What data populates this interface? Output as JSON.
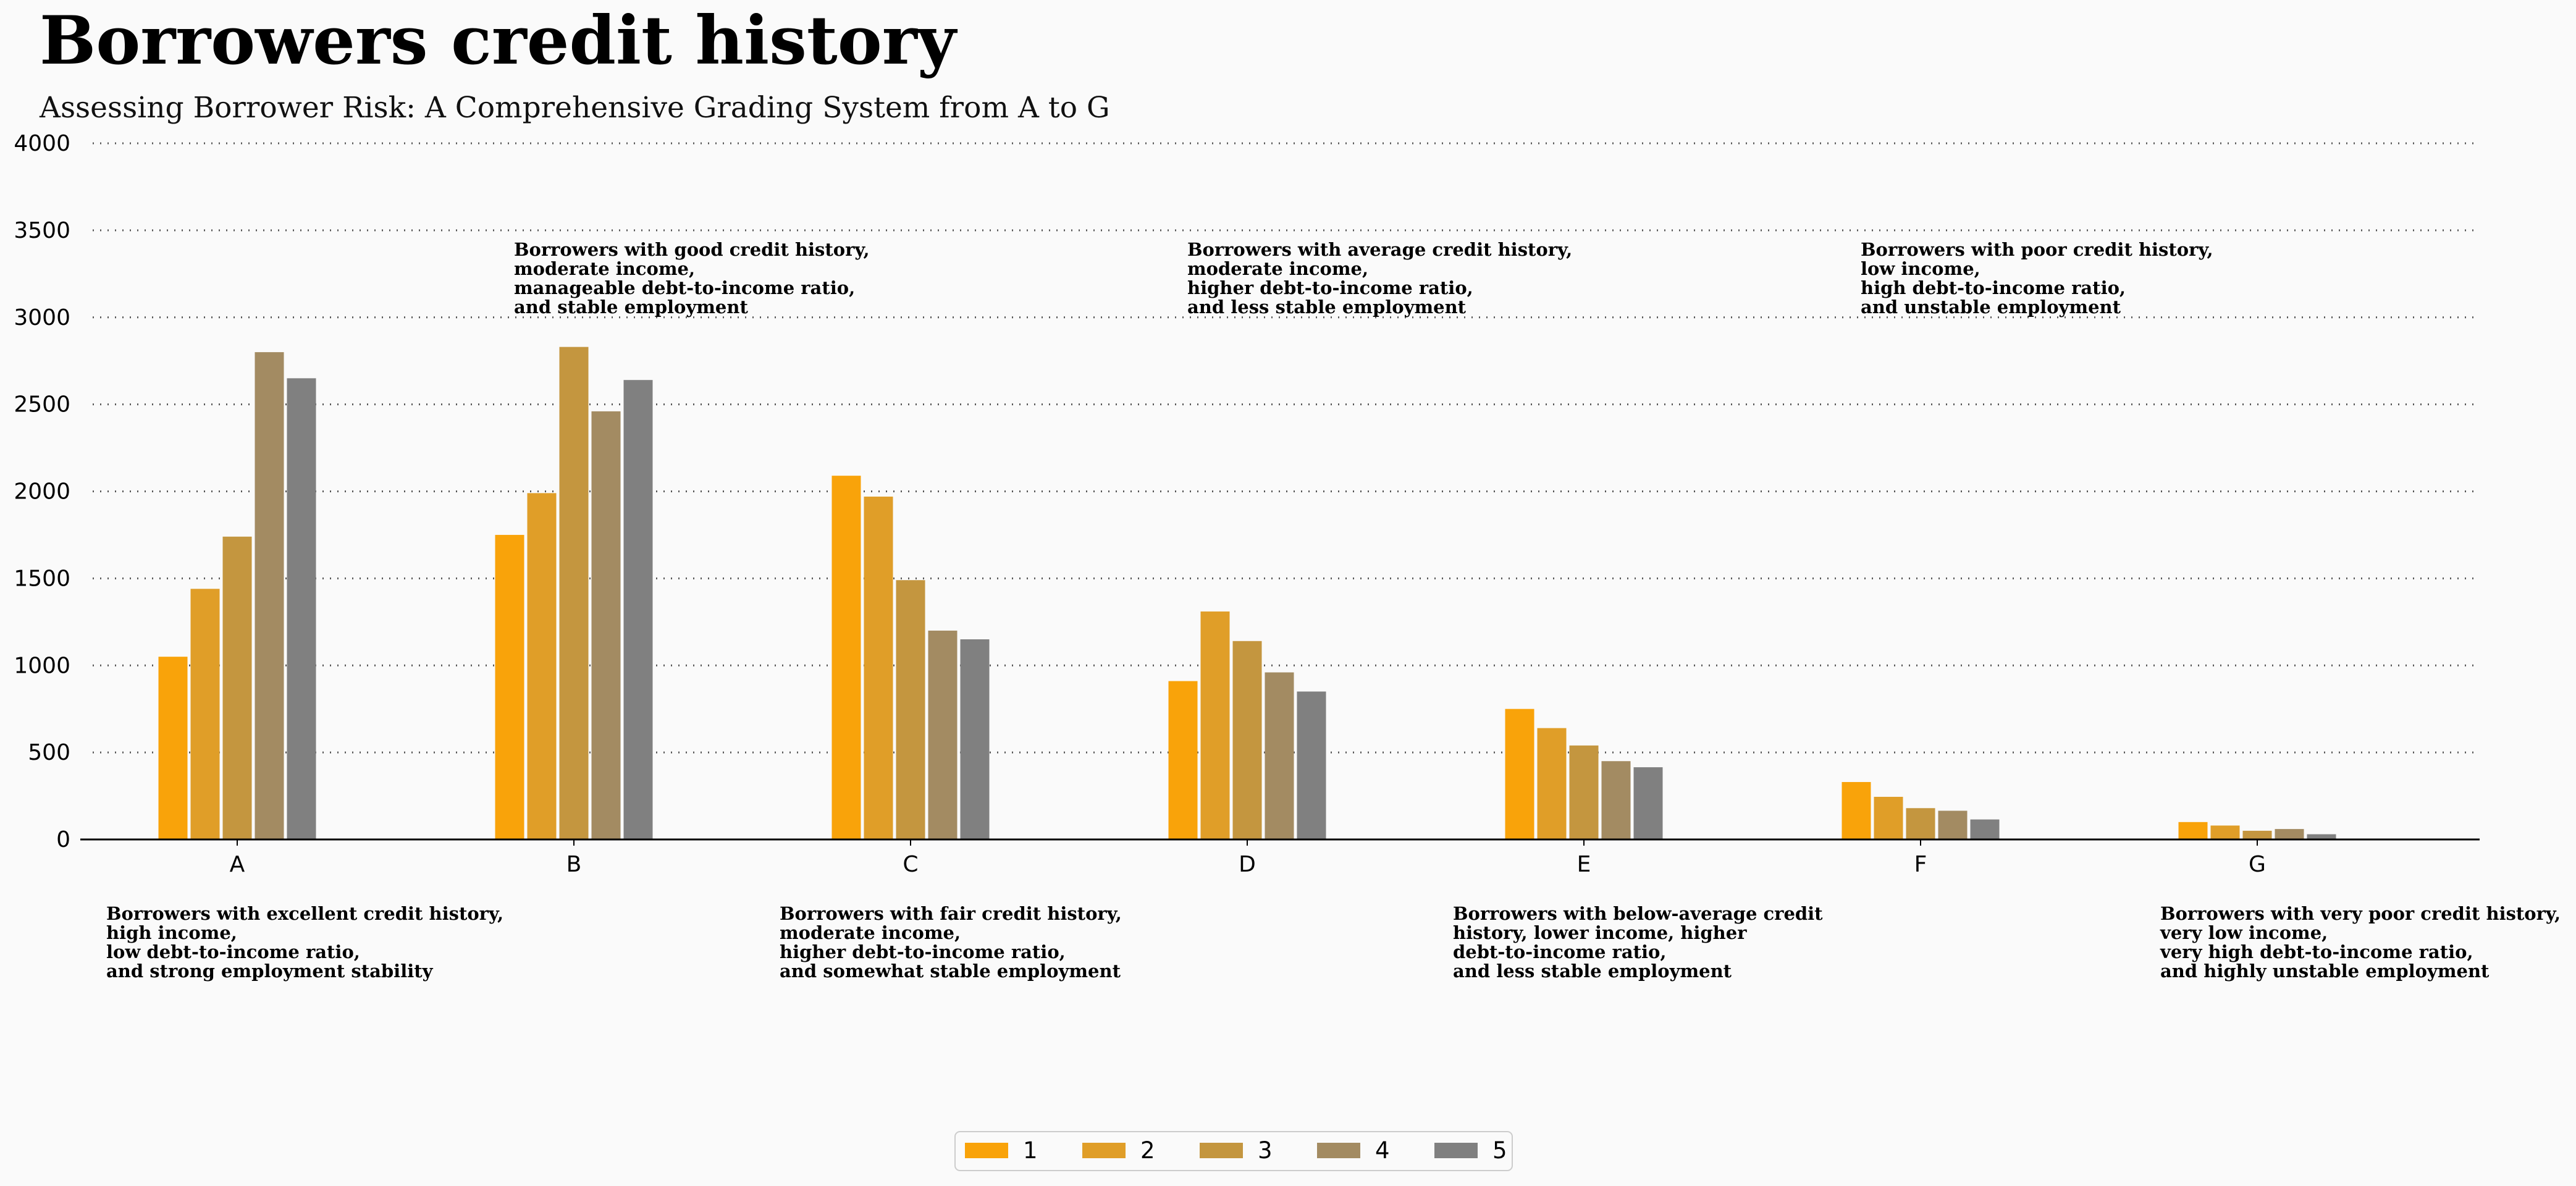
{
  "chart_data": {
    "type": "bar",
    "title": "Borrowers credit history",
    "subtitle": "Assessing Borrower Risk: A Comprehensive Grading System from A to G",
    "categories": [
      "A",
      "B",
      "C",
      "D",
      "E",
      "F",
      "G"
    ],
    "series": [
      {
        "name": "1",
        "color": "#f9a30a",
        "values": [
          1050,
          1750,
          2090,
          910,
          750,
          330,
          100
        ]
      },
      {
        "name": "2",
        "color": "#e09e28",
        "values": [
          1440,
          1990,
          1970,
          1310,
          640,
          245,
          80
        ]
      },
      {
        "name": "3",
        "color": "#c4963f",
        "values": [
          1740,
          2830,
          1490,
          1140,
          540,
          180,
          50
        ]
      },
      {
        "name": "4",
        "color": "#a38b62",
        "values": [
          2800,
          2460,
          1200,
          960,
          450,
          165,
          60
        ]
      },
      {
        "name": "5",
        "color": "#808080",
        "values": [
          2650,
          2640,
          1150,
          850,
          415,
          115,
          30
        ]
      }
    ],
    "y_ticks": [
      "0",
      "500",
      "1000",
      "1500",
      "2000",
      "2500",
      "3000",
      "3500",
      "4000"
    ],
    "ylim": [
      0,
      4000
    ],
    "xlabel": "",
    "ylabel": "",
    "grid": "horizontal dotted",
    "legend_position": "bottom-center",
    "annotations": [
      {
        "category": "A",
        "position": "below",
        "lines": [
          "Borrowers with excellent credit history,",
          "high income,",
          "low debt-to-income ratio,",
          "and strong employment stability"
        ]
      },
      {
        "category": "B",
        "position": "above",
        "lines": [
          "Borrowers with good credit history,",
          "moderate income,",
          "manageable debt-to-income ratio,",
          "and stable employment"
        ]
      },
      {
        "category": "C",
        "position": "below",
        "lines": [
          "Borrowers with fair credit history,",
          "moderate income,",
          " higher debt-to-income ratio,",
          "and somewhat stable employment"
        ]
      },
      {
        "category": "D",
        "position": "above",
        "lines": [
          "Borrowers with average credit history,",
          "moderate income,",
          " higher debt-to-income ratio,",
          "and less stable employment"
        ]
      },
      {
        "category": "E",
        "position": "below",
        "lines": [
          "Borrowers with below-average credit",
          "history, lower income, higher",
          "debt-to-income ratio,",
          "and less stable employment"
        ]
      },
      {
        "category": "F",
        "position": "above",
        "lines": [
          "Borrowers with poor credit history,",
          "low income,",
          "high debt-to-income ratio,",
          "and unstable employment"
        ]
      },
      {
        "category": "G",
        "position": "below",
        "lines": [
          "Borrowers with very poor credit history,",
          "very low income,",
          "very high debt-to-income ratio,",
          "and highly unstable employment"
        ]
      }
    ]
  }
}
